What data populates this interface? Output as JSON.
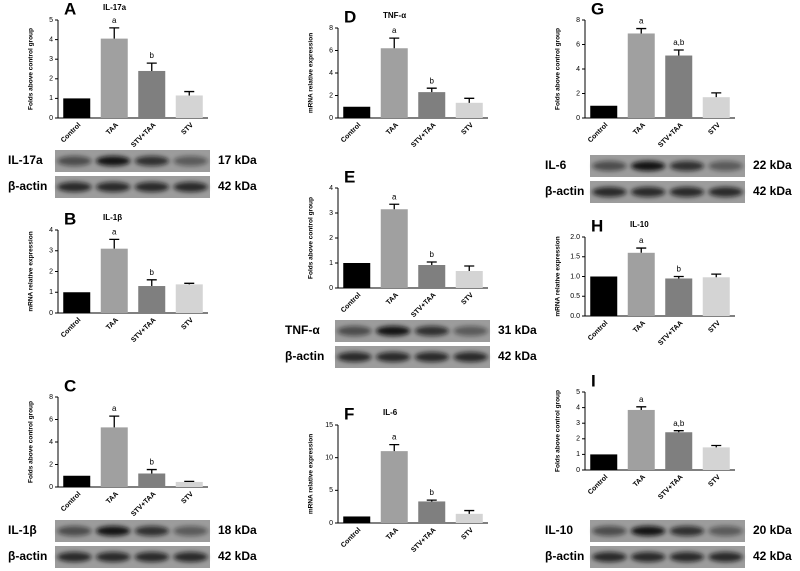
{
  "chart_data": [
    {
      "type": "bar",
      "panel": "A",
      "title": "IL-17a",
      "y_label": "Folds above control group",
      "categories": [
        "Control",
        "TAA",
        "STV+TAA",
        "STV"
      ],
      "values": [
        1,
        4.05,
        2.4,
        1.15
      ],
      "errors": [
        0,
        0.55,
        0.4,
        0.2
      ],
      "colors": [
        "#000000",
        "#a0a0a0",
        "#7f7f7f",
        "#d4d4d4"
      ],
      "annotations": [
        null,
        "a",
        "b",
        null
      ],
      "ylim": [
        0,
        5
      ],
      "yticks": [
        0,
        1,
        2,
        3,
        4,
        5
      ],
      "blot": {
        "target": "IL-17a",
        "loading": "β-actin",
        "target_kda": "17 kDa",
        "loading_kda": "42 kDa"
      }
    },
    {
      "type": "bar",
      "panel": "B",
      "title": "IL-1β",
      "y_label": "mRNA relative expression",
      "categories": [
        "Control",
        "TAA",
        "STV+TAA",
        "STV"
      ],
      "values": [
        1,
        3.1,
        1.3,
        1.38
      ],
      "errors": [
        0,
        0.45,
        0.3,
        0.05
      ],
      "colors": [
        "#000000",
        "#a0a0a0",
        "#7f7f7f",
        "#d4d4d4"
      ],
      "annotations": [
        null,
        "a",
        "b",
        null
      ],
      "ylim": [
        0,
        4
      ],
      "yticks": [
        0,
        1,
        2,
        3,
        4
      ]
    },
    {
      "type": "bar",
      "panel": "C",
      "y_label": "Folds above control group",
      "categories": [
        "Control",
        "TAA",
        "STV+TAA",
        "STV"
      ],
      "values": [
        1,
        5.3,
        1.2,
        0.45
      ],
      "errors": [
        0,
        1.0,
        0.35,
        0.05
      ],
      "colors": [
        "#000000",
        "#a0a0a0",
        "#7f7f7f",
        "#d4d4d4"
      ],
      "annotations": [
        null,
        "a",
        "b",
        null
      ],
      "ylim": [
        0,
        8
      ],
      "yticks": [
        0,
        2,
        4,
        6,
        8
      ],
      "blot": {
        "target": "IL-1β",
        "loading": "β-actin",
        "target_kda": "18 kDa",
        "loading_kda": "42 kDa"
      }
    },
    {
      "type": "bar",
      "panel": "D",
      "title": "TNF-α",
      "y_label": "mRNA relative expression",
      "categories": [
        "Control",
        "TAA",
        "STV+TAA",
        "STV"
      ],
      "values": [
        1,
        6.2,
        2.3,
        1.35
      ],
      "errors": [
        0,
        0.9,
        0.35,
        0.4
      ],
      "colors": [
        "#000000",
        "#a0a0a0",
        "#7f7f7f",
        "#d4d4d4"
      ],
      "annotations": [
        null,
        "a",
        "b",
        null
      ],
      "ylim": [
        0,
        8
      ],
      "yticks": [
        0,
        2,
        4,
        6,
        8
      ]
    },
    {
      "type": "bar",
      "panel": "E",
      "y_label": "Folds above control group",
      "categories": [
        "Control",
        "TAA",
        "STV+TAA",
        "STV"
      ],
      "values": [
        1,
        3.15,
        0.92,
        0.68
      ],
      "errors": [
        0,
        0.2,
        0.12,
        0.2
      ],
      "colors": [
        "#000000",
        "#a0a0a0",
        "#7f7f7f",
        "#d4d4d4"
      ],
      "annotations": [
        null,
        "a",
        "b",
        null
      ],
      "ylim": [
        0,
        4
      ],
      "yticks": [
        0,
        1,
        2,
        3,
        4
      ],
      "blot": {
        "target": "TNF-α",
        "loading": "β-actin",
        "target_kda": "31 kDa",
        "loading_kda": "42 kDa"
      }
    },
    {
      "type": "bar",
      "panel": "F",
      "title": "IL-6",
      "y_label": "mRNA relative expression",
      "categories": [
        "Control",
        "TAA",
        "STV+TAA",
        "STV"
      ],
      "values": [
        1,
        11,
        3.3,
        1.4
      ],
      "errors": [
        0,
        1.0,
        0.2,
        0.5
      ],
      "colors": [
        "#000000",
        "#a0a0a0",
        "#7f7f7f",
        "#d4d4d4"
      ],
      "annotations": [
        null,
        "a",
        "b",
        null
      ],
      "ylim": [
        0,
        15
      ],
      "yticks": [
        0,
        5,
        10,
        15
      ]
    },
    {
      "type": "bar",
      "panel": "G",
      "y_label": "Folds above control group",
      "categories": [
        "Control",
        "TAA",
        "STV+TAA",
        "STV"
      ],
      "values": [
        1,
        6.9,
        5.1,
        1.7
      ],
      "errors": [
        0,
        0.4,
        0.45,
        0.35
      ],
      "colors": [
        "#000000",
        "#a0a0a0",
        "#7f7f7f",
        "#d4d4d4"
      ],
      "annotations": [
        null,
        "a",
        "a,b",
        null
      ],
      "ylim": [
        0,
        8
      ],
      "yticks": [
        0,
        2,
        4,
        6,
        8
      ],
      "blot": {
        "target": "IL-6",
        "loading": "β-actin",
        "target_kda": "22 kDa",
        "loading_kda": "42 kDa"
      }
    },
    {
      "type": "bar",
      "panel": "H",
      "title": "IL-10",
      "y_label": "mRNA relative expression",
      "categories": [
        "Control",
        "TAA",
        "STV+TAA",
        "STV"
      ],
      "values": [
        1.0,
        1.6,
        0.95,
        0.98
      ],
      "errors": [
        0,
        0.12,
        0.05,
        0.08
      ],
      "colors": [
        "#000000",
        "#a0a0a0",
        "#7f7f7f",
        "#d4d4d4"
      ],
      "annotations": [
        null,
        "a",
        "b",
        null
      ],
      "ylim": [
        0,
        2
      ],
      "yticks": [
        {
          "value": 0,
          "label": "0.0"
        },
        0.5,
        {
          "value": 1,
          "label": "1.0"
        },
        1.5,
        {
          "value": 2,
          "label": "2.0"
        }
      ]
    },
    {
      "type": "bar",
      "panel": "I",
      "y_label": "Folds above control group",
      "categories": [
        "Control",
        "TAA",
        "STV+TAA",
        "STV"
      ],
      "values": [
        1,
        3.85,
        2.42,
        1.45
      ],
      "errors": [
        0,
        0.2,
        0.1,
        0.12
      ],
      "colors": [
        "#000000",
        "#a0a0a0",
        "#7f7f7f",
        "#d4d4d4"
      ],
      "annotations": [
        null,
        "a",
        "a,b",
        null
      ],
      "ylim": [
        0,
        5
      ],
      "yticks": [
        0,
        1,
        2,
        3,
        4,
        5
      ],
      "blot": {
        "target": "IL-10",
        "loading": "β-actin",
        "target_kda": "20 kDa",
        "loading_kda": "42 kDa"
      }
    }
  ]
}
